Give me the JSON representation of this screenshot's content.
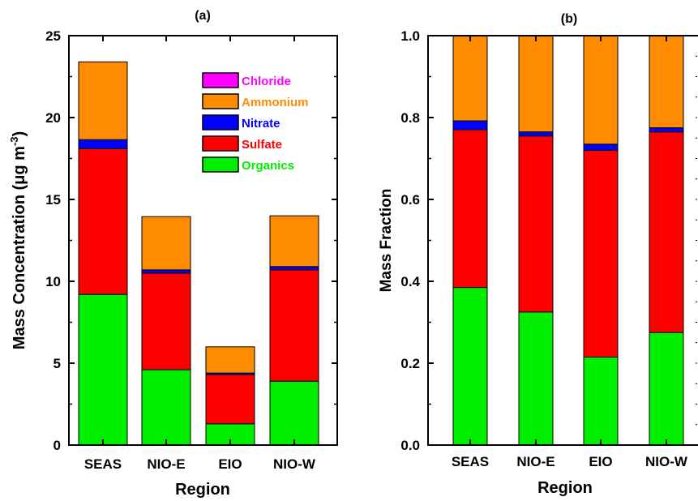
{
  "chart_data": [
    {
      "type": "bar",
      "stacked": true,
      "title": "(a)",
      "xlabel": "Region",
      "ylabel_main": "Mass Concentration (μg m",
      "ylabel_sup": "-3",
      "ylabel_close": ")",
      "categories": [
        "SEAS",
        "NIO-E",
        "EIO",
        "NIO-W"
      ],
      "ylim": [
        0,
        25
      ],
      "yticks": [
        0,
        5,
        10,
        15,
        20,
        25
      ],
      "ytick_labels": [
        "0",
        "5",
        "10",
        "15",
        "20",
        "25"
      ],
      "legend_position": "top-right",
      "series": [
        {
          "name": "Organics",
          "color": "#00ee00",
          "values": [
            9.2,
            4.6,
            1.3,
            3.9
          ]
        },
        {
          "name": "Sulfate",
          "color": "#ff0000",
          "values": [
            8.9,
            5.9,
            3.0,
            6.8
          ]
        },
        {
          "name": "Nitrate",
          "color": "#0000ff",
          "values": [
            0.55,
            0.2,
            0.1,
            0.2
          ]
        },
        {
          "name": "Ammonium",
          "color": "#ff8c00",
          "values": [
            4.75,
            3.25,
            1.6,
            3.1
          ]
        },
        {
          "name": "Chloride",
          "color": "#ff00ff",
          "values": [
            0,
            0,
            0,
            0
          ]
        }
      ]
    },
    {
      "type": "bar",
      "stacked": true,
      "title": "(b)",
      "xlabel": "Region",
      "ylabel": "Mass Fraction",
      "categories": [
        "SEAS",
        "NIO-E",
        "EIO",
        "NIO-W"
      ],
      "ylim": [
        0,
        1.0
      ],
      "yticks": [
        0,
        0.2,
        0.4,
        0.6,
        0.8,
        1.0
      ],
      "ytick_labels": [
        "0.0",
        "0.2",
        "0.4",
        "0.6",
        "0.8",
        "1.0"
      ],
      "series": [
        {
          "name": "Organics",
          "color": "#00ee00",
          "values": [
            0.385,
            0.325,
            0.215,
            0.275
          ]
        },
        {
          "name": "Sulfate",
          "color": "#ff0000",
          "values": [
            0.385,
            0.43,
            0.505,
            0.49
          ]
        },
        {
          "name": "Nitrate",
          "color": "#0000ff",
          "values": [
            0.022,
            0.01,
            0.015,
            0.01
          ]
        },
        {
          "name": "Ammonium",
          "color": "#ff8c00",
          "values": [
            0.208,
            0.235,
            0.265,
            0.225
          ]
        },
        {
          "name": "Chloride",
          "color": "#ff00ff",
          "values": [
            0,
            0,
            0,
            0
          ]
        }
      ]
    }
  ],
  "legend": {
    "items": [
      {
        "name": "Chloride",
        "color": "#ff00ff"
      },
      {
        "name": "Ammonium",
        "color": "#ff8c00"
      },
      {
        "name": "Nitrate",
        "color": "#0000ff"
      },
      {
        "name": "Sulfate",
        "color": "#ff0000"
      },
      {
        "name": "Organics",
        "color": "#00ee00"
      }
    ]
  }
}
